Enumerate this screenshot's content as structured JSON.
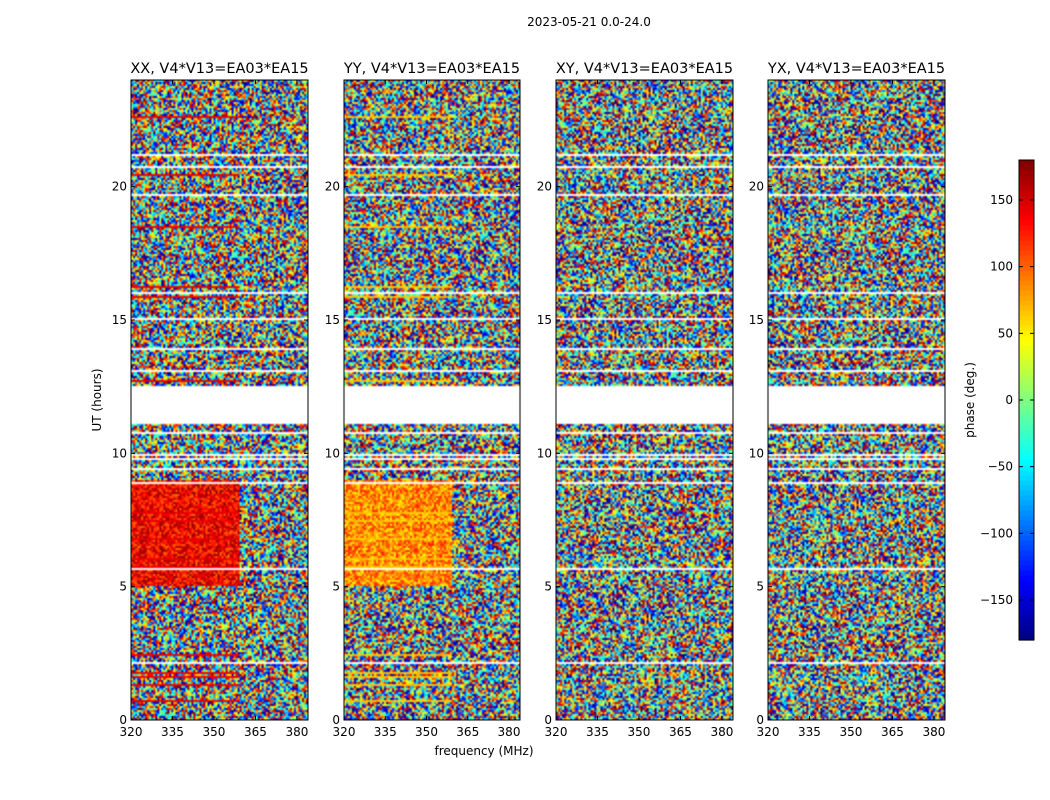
{
  "chart_data": {
    "type": "heatmap",
    "suptitle": "2023-05-21 0.0-24.0",
    "xlabel": "frequency (MHz)",
    "ylabel": "UT (hours)",
    "xlim": [
      320,
      384
    ],
    "ylim": [
      0,
      24
    ],
    "xticks": [
      "320",
      "335",
      "350",
      "365",
      "380"
    ],
    "xtick_values": [
      320,
      335,
      350,
      365,
      380
    ],
    "yticks": [
      "0",
      "5",
      "10",
      "15",
      "20"
    ],
    "ytick_values": [
      0,
      5,
      10,
      15,
      20
    ],
    "colorbar": {
      "label": "phase (deg.)",
      "range": [
        -180,
        180
      ],
      "ticks": [
        "150",
        "100",
        "50",
        "0",
        "−50",
        "−100",
        "−150"
      ],
      "tick_values": [
        150,
        100,
        50,
        0,
        -50,
        -100,
        -150
      ],
      "colormap": "jet"
    },
    "panels": [
      {
        "title": "XX, V4*V13=EA03*EA15",
        "pol": "XX"
      },
      {
        "title": "YY, V4*V13=EA03*EA15",
        "pol": "YY"
      },
      {
        "title": "XY, V4*V13=EA03*EA15",
        "pol": "XY"
      },
      {
        "title": "YX, V4*V13=EA03*EA15",
        "pol": "YX"
      }
    ],
    "flagged_ut_ranges": [
      [
        11.1,
        12.5
      ]
    ],
    "description_note": "phase vs time and frequency, mostly noise-like"
  }
}
